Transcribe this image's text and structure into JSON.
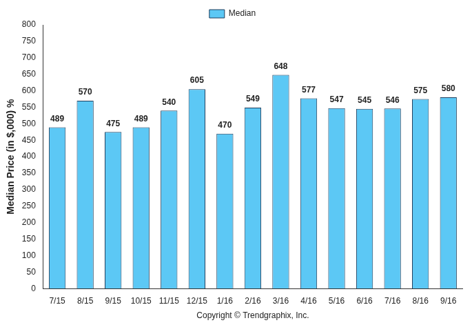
{
  "chart_data": {
    "type": "bar",
    "ylabel": "Median Price (in $,000) %",
    "xlabel": "Copyright © Trendgraphix, Inc.",
    "categories": [
      "7/15",
      "8/15",
      "9/15",
      "10/15",
      "11/15",
      "12/15",
      "1/16",
      "2/16",
      "3/16",
      "4/16",
      "5/16",
      "6/16",
      "7/16",
      "8/16",
      "9/16"
    ],
    "series": [
      {
        "name": "Median",
        "color": "#5cc8f5",
        "values": [
          489,
          570,
          475,
          489,
          540,
          605,
          470,
          549,
          648,
          577,
          547,
          545,
          546,
          575,
          580
        ]
      }
    ],
    "ylim": [
      0,
      800
    ],
    "yticks": [
      0,
      50,
      100,
      150,
      200,
      250,
      300,
      350,
      400,
      450,
      500,
      550,
      600,
      650,
      700,
      750,
      800
    ],
    "grid": false,
    "legend": "top",
    "data_labels": true
  }
}
